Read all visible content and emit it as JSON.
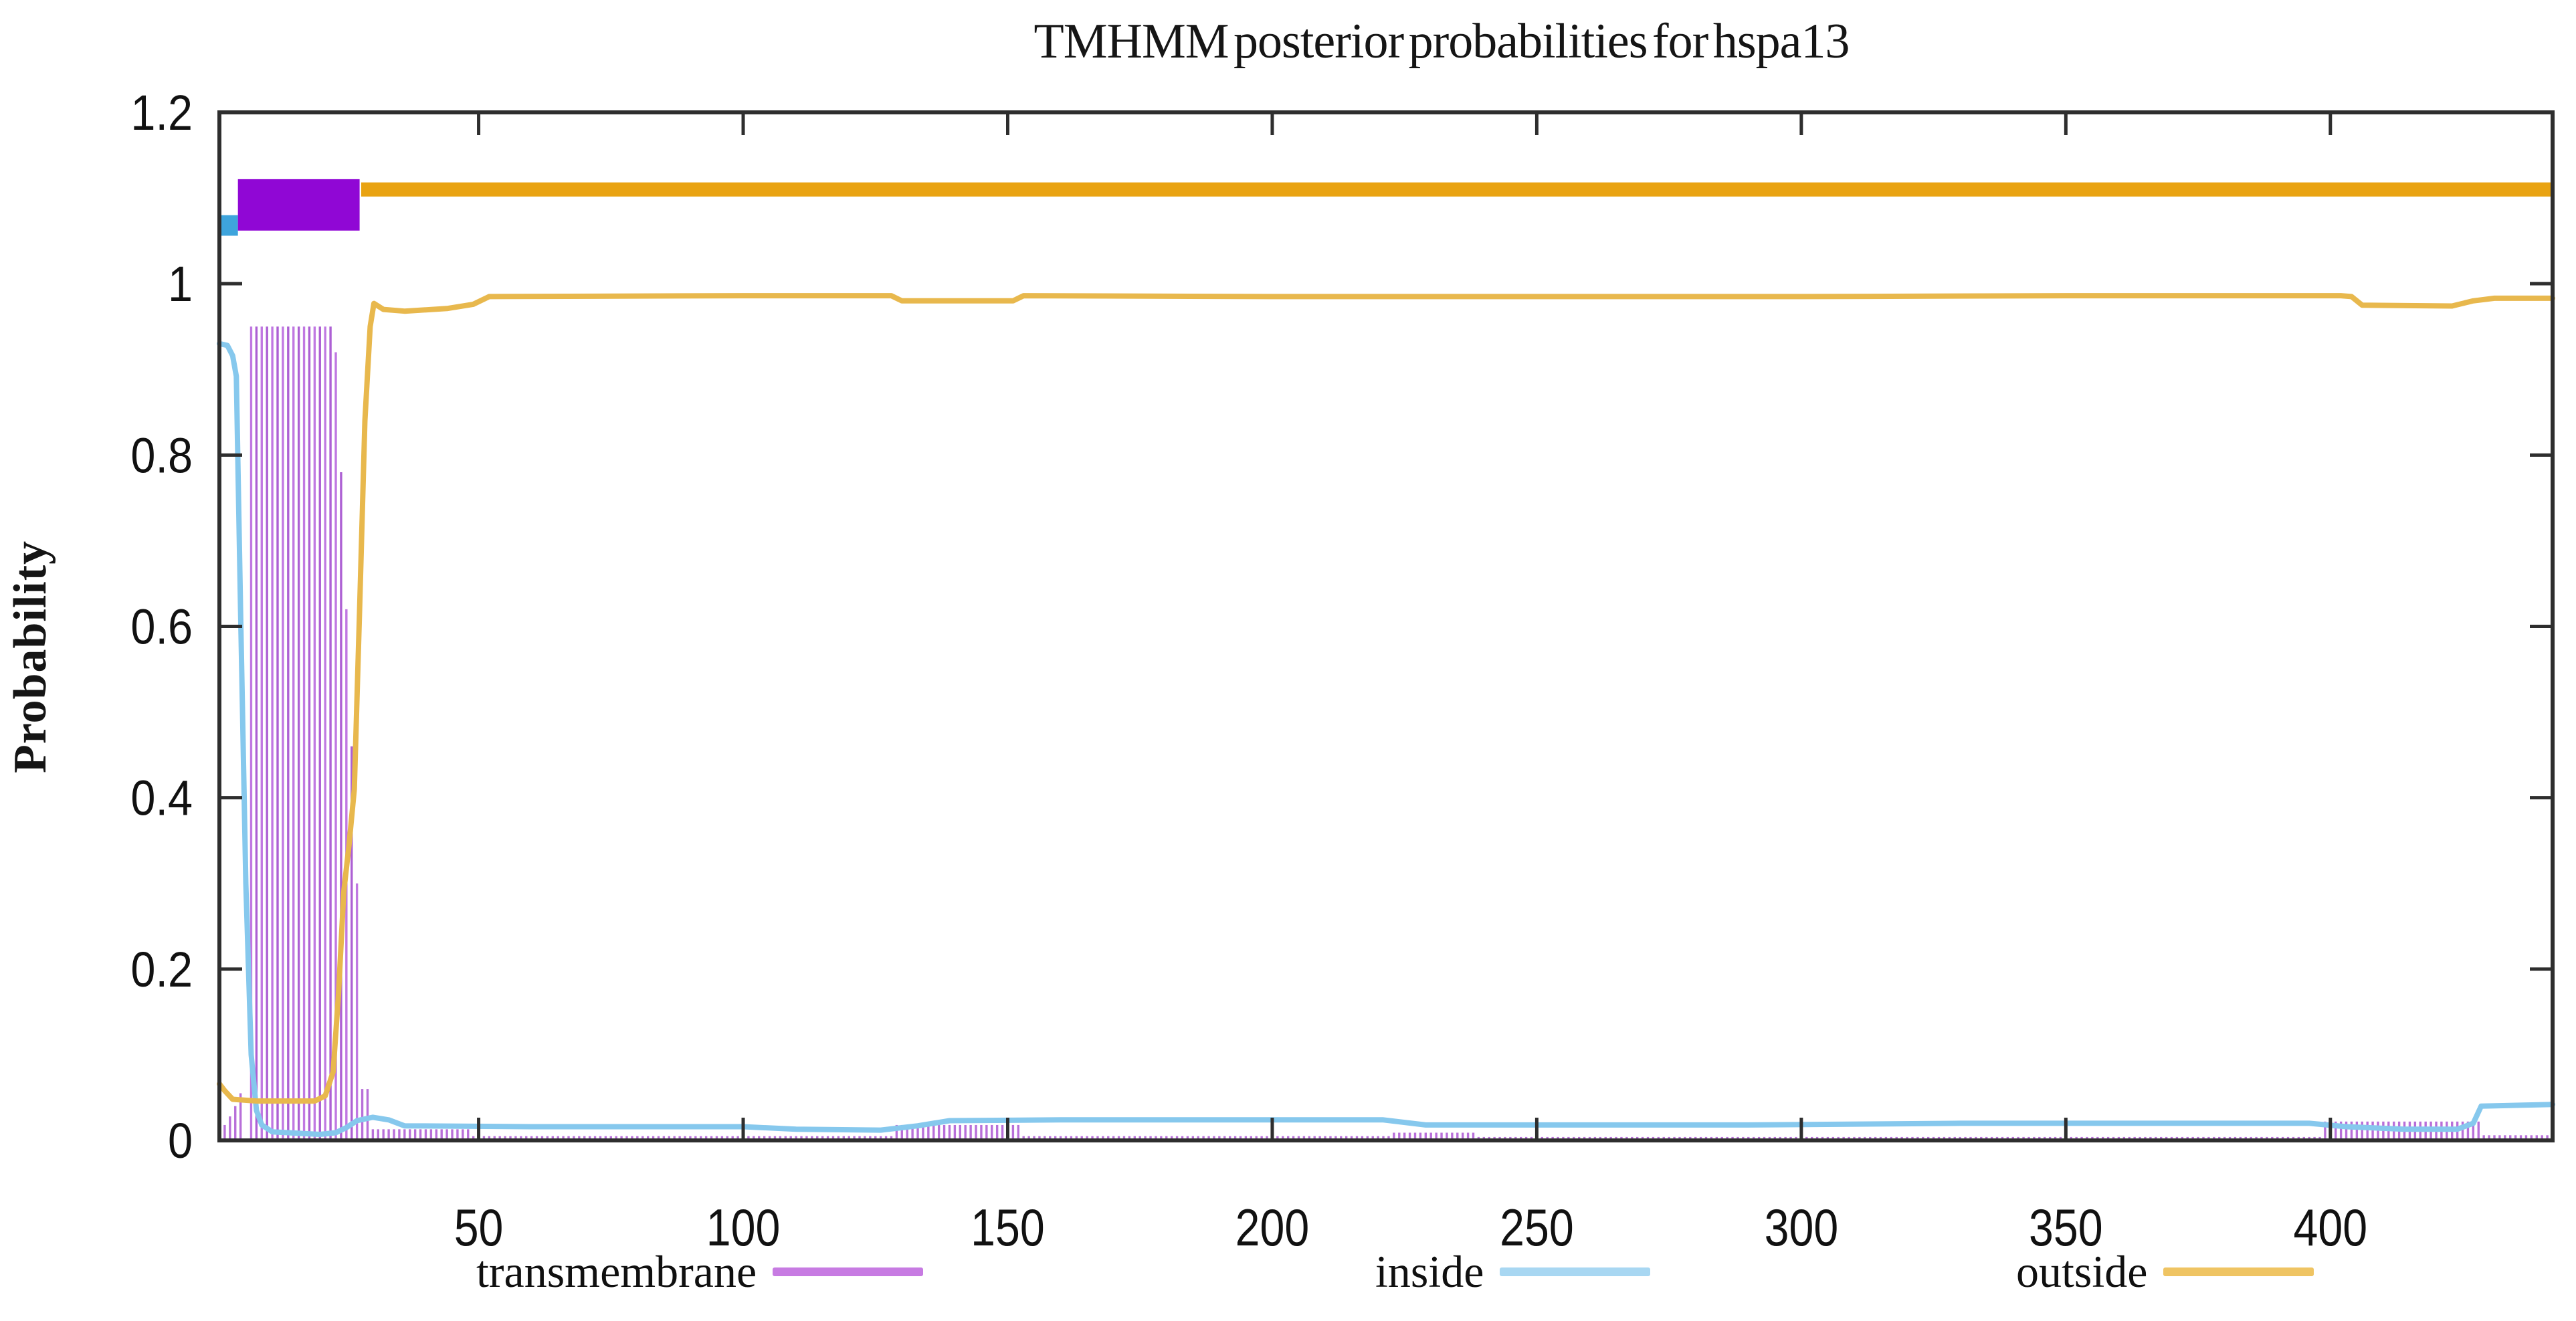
{
  "chart_data": {
    "type": "line",
    "title": "TMHMM posterior probabilities for hspa13",
    "xlabel": "",
    "ylabel": "Probability",
    "xlim": [
      1,
      442
    ],
    "ylim": [
      0,
      1.2
    ],
    "grid": false,
    "legend_position": "bottom",
    "x_ticks": [
      50,
      100,
      150,
      200,
      250,
      300,
      350,
      400
    ],
    "y_ticks": [
      {
        "v": 0,
        "label": "0"
      },
      {
        "v": 0.2,
        "label": "0.2"
      },
      {
        "v": 0.4,
        "label": "0.4"
      },
      {
        "v": 0.6,
        "label": "0.6"
      },
      {
        "v": 0.8,
        "label": "0.8"
      },
      {
        "v": 1,
        "label": "1"
      },
      {
        "v": 1.2,
        "label": "1.2"
      }
    ],
    "series": [
      {
        "name": "transmembrane",
        "style": "impulse-hatch",
        "color": "#b86fd9",
        "color_alt": "#c078e2",
        "color_alt2": "#ad60d4",
        "legend_color": "#c77be2",
        "segments": [
          [
            1,
            1,
            0.012
          ],
          [
            2,
            2,
            0.018
          ],
          [
            3,
            3,
            0.028
          ],
          [
            4,
            4,
            0.04
          ],
          [
            5,
            5,
            0.055
          ],
          [
            7,
            22,
            0.95
          ],
          [
            23,
            23,
            0.92
          ],
          [
            24,
            24,
            0.78
          ],
          [
            25,
            25,
            0.62
          ],
          [
            26,
            26,
            0.46
          ],
          [
            27,
            27,
            0.3
          ],
          [
            28,
            29,
            0.06
          ],
          [
            30,
            48,
            0.013
          ],
          [
            49,
            128,
            0.005
          ],
          [
            129,
            152,
            0.018
          ],
          [
            153,
            222,
            0.005
          ],
          [
            223,
            238,
            0.009
          ],
          [
            239,
            398,
            0.004
          ],
          [
            399,
            428,
            0.022
          ],
          [
            429,
            442,
            0.006
          ]
        ]
      },
      {
        "name": "inside",
        "style": "line",
        "color": "#86c8ed",
        "legend_color": "#a8d7f2",
        "points": [
          [
            1,
            0.93
          ],
          [
            2.5,
            0.928
          ],
          [
            3.5,
            0.916
          ],
          [
            4.2,
            0.892
          ],
          [
            5,
            0.62
          ],
          [
            6,
            0.3
          ],
          [
            7,
            0.1
          ],
          [
            8,
            0.035
          ],
          [
            9,
            0.018
          ],
          [
            11,
            0.01
          ],
          [
            20,
            0.007
          ],
          [
            23,
            0.009
          ],
          [
            25,
            0.015
          ],
          [
            27,
            0.023
          ],
          [
            30,
            0.027
          ],
          [
            33,
            0.024
          ],
          [
            36,
            0.017
          ],
          [
            60,
            0.016
          ],
          [
            100,
            0.016
          ],
          [
            110,
            0.013
          ],
          [
            126,
            0.012
          ],
          [
            133,
            0.017
          ],
          [
            139,
            0.023
          ],
          [
            160,
            0.024
          ],
          [
            221,
            0.024
          ],
          [
            229,
            0.018
          ],
          [
            290,
            0.018
          ],
          [
            330,
            0.02
          ],
          [
            396,
            0.02
          ],
          [
            403,
            0.016
          ],
          [
            414,
            0.013
          ],
          [
            424,
            0.013
          ],
          [
            427,
            0.02
          ],
          [
            428.5,
            0.04
          ],
          [
            442,
            0.042
          ]
        ]
      },
      {
        "name": "outside",
        "style": "line",
        "color": "#e8b84d",
        "legend_color": "#efc463",
        "points": [
          [
            1,
            0.066
          ],
          [
            2,
            0.058
          ],
          [
            3.5,
            0.048
          ],
          [
            8,
            0.046
          ],
          [
            19,
            0.046
          ],
          [
            21,
            0.052
          ],
          [
            22.5,
            0.08
          ],
          [
            23.5,
            0.17
          ],
          [
            24.5,
            0.29
          ],
          [
            25.5,
            0.345
          ],
          [
            26.5,
            0.41
          ],
          [
            27.5,
            0.62
          ],
          [
            28.5,
            0.84
          ],
          [
            29.5,
            0.95
          ],
          [
            30.2,
            0.977
          ],
          [
            32,
            0.97
          ],
          [
            36,
            0.968
          ],
          [
            44,
            0.971
          ],
          [
            49,
            0.976
          ],
          [
            52,
            0.985
          ],
          [
            100,
            0.986
          ],
          [
            128,
            0.986
          ],
          [
            130,
            0.98
          ],
          [
            151,
            0.98
          ],
          [
            153,
            0.986
          ],
          [
            200,
            0.985
          ],
          [
            250,
            0.985
          ],
          [
            300,
            0.985
          ],
          [
            350,
            0.986
          ],
          [
            402,
            0.986
          ],
          [
            404,
            0.985
          ],
          [
            406,
            0.975
          ],
          [
            423,
            0.974
          ],
          [
            427,
            0.98
          ],
          [
            431,
            0.983
          ],
          [
            442,
            0.983
          ]
        ]
      }
    ],
    "top_bars": [
      {
        "name": "inside-top-bar",
        "from": 1,
        "to": 4.5,
        "y_center": 1.068,
        "thickness": 0.024,
        "color": "#3ea4dc"
      },
      {
        "name": "transmembrane-top-bar",
        "from": 4.5,
        "to": 27.5,
        "y_center": 1.092,
        "thickness": 0.06,
        "color": "#9007d5"
      },
      {
        "name": "outside-top-bar",
        "from": 27.8,
        "to": 442,
        "y_center": 1.11,
        "thickness": 0.0165,
        "color": "#e9a312"
      }
    ]
  }
}
